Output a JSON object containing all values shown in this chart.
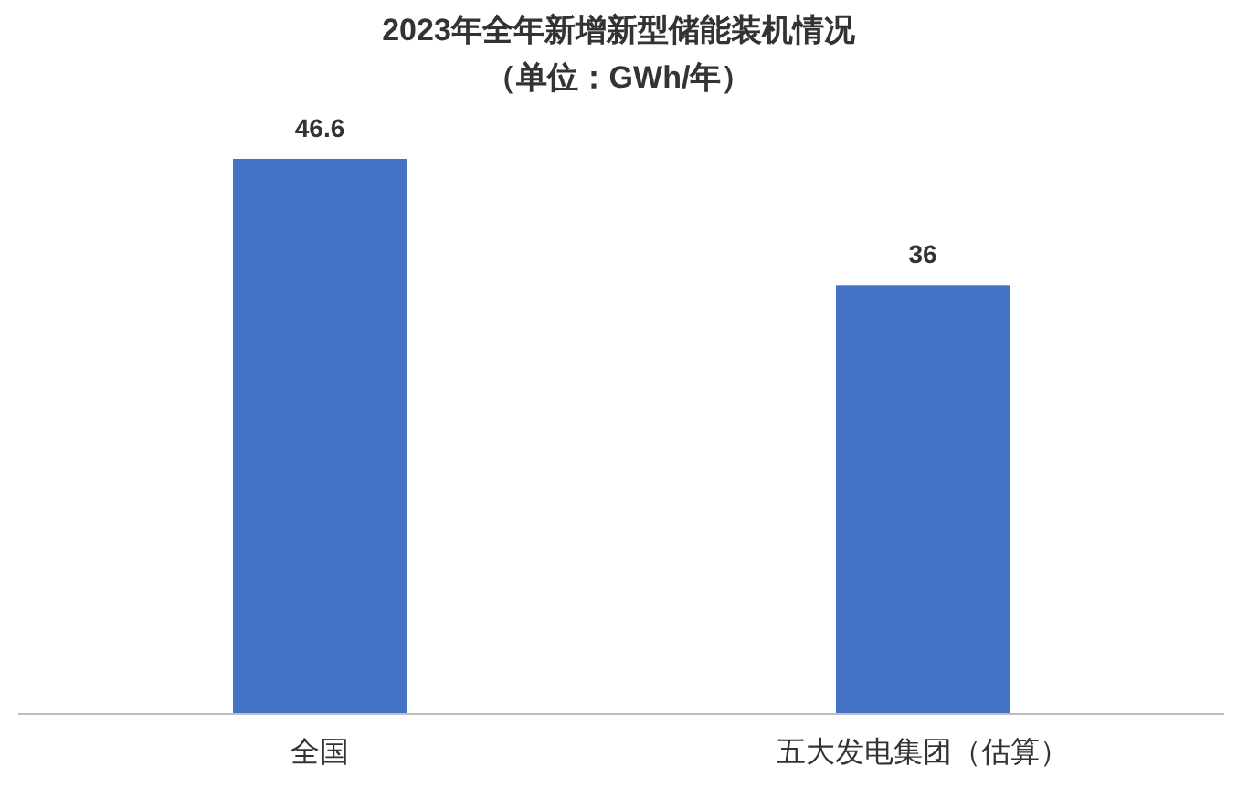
{
  "chart_data": {
    "type": "bar",
    "title": "2023年全年新增新型储能装机情况",
    "subtitle": "（单位：GWh/年）",
    "categories": [
      "全国",
      "五大发电集团（估算）"
    ],
    "values": [
      46.6,
      36
    ],
    "color": "#4472c4",
    "data_labels": true
  }
}
